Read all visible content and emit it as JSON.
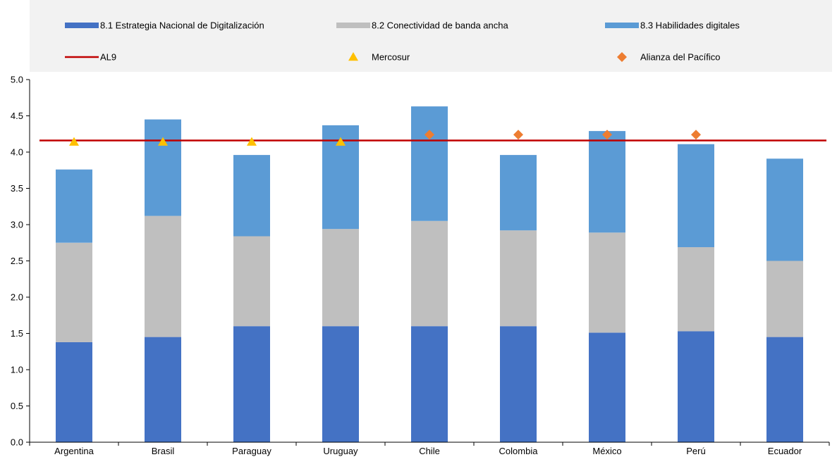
{
  "chart_data": {
    "type": "bar",
    "stacked": true,
    "categories": [
      "Argentina",
      "Brasil",
      "Paraguay",
      "Uruguay",
      "Chile",
      "Colombia",
      "México",
      "Perú",
      "Ecuador"
    ],
    "series": [
      {
        "name": "8.1 Estrategia Nacional de Digitalización",
        "color": "#4472C4",
        "values": [
          1.38,
          1.45,
          1.6,
          1.6,
          1.6,
          1.6,
          1.51,
          1.53,
          1.45
        ]
      },
      {
        "name": "8.2 Conectividad de banda ancha",
        "color": "#BFBFBF",
        "values": [
          1.37,
          1.67,
          1.24,
          1.34,
          1.45,
          1.32,
          1.38,
          1.16,
          1.05
        ]
      },
      {
        "name": "8.3 Habilidades digitales",
        "color": "#5B9BD5",
        "values": [
          1.01,
          1.33,
          1.12,
          1.43,
          1.58,
          1.04,
          1.4,
          1.42,
          1.41
        ]
      }
    ],
    "reference_line": {
      "name": "AL9",
      "color": "#C00000",
      "value": 4.16
    },
    "markers": [
      {
        "name": "Mercosur",
        "shape": "triangle",
        "color": "#FFC000",
        "points": [
          {
            "category": "Argentina",
            "value": 4.14
          },
          {
            "category": "Brasil",
            "value": 4.14
          },
          {
            "category": "Paraguay",
            "value": 4.14
          },
          {
            "category": "Uruguay",
            "value": 4.14
          }
        ]
      },
      {
        "name": "Alianza del Pacífico",
        "shape": "diamond",
        "color": "#ED7D31",
        "points": [
          {
            "category": "Chile",
            "value": 4.24
          },
          {
            "category": "Colombia",
            "value": 4.24
          },
          {
            "category": "México",
            "value": 4.24
          },
          {
            "category": "Perú",
            "value": 4.24
          }
        ]
      }
    ],
    "ylim": [
      0,
      5.0
    ],
    "yticks": [
      "0.0",
      "0.5",
      "1.0",
      "1.5",
      "2.0",
      "2.5",
      "3.0",
      "3.5",
      "4.0",
      "4.5",
      "5.0"
    ],
    "grid": false,
    "legend_position": "top",
    "legend_background": "#F2F2F2",
    "title": "",
    "xlabel": "",
    "ylabel": ""
  }
}
